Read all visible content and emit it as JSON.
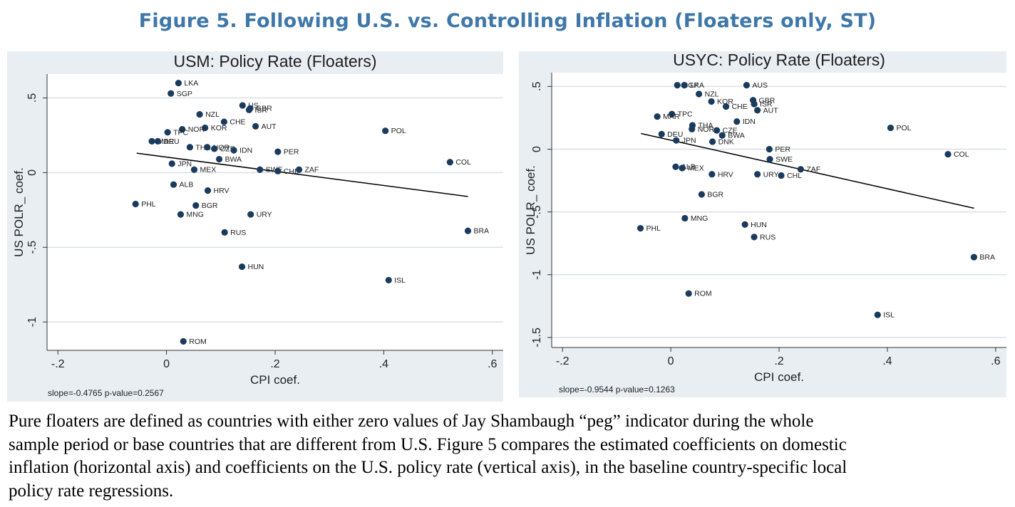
{
  "page": {
    "figure_title": "Figure 5. Following U.S. vs. Controlling Inflation (Floaters only, ST)",
    "caption_lines": [
      "Pure floaters are defined as countries with either zero values of Jay Shambaugh “peg” indicator during the whole",
      "sample period or base countries that are different from U.S. Figure 5 compares the estimated coefficients on domestic",
      "inflation (horizontal axis) and coefficients on the U.S. policy rate (vertical axis), in the baseline country-specific local",
      "policy rate regressions."
    ]
  },
  "colors": {
    "title": "#3f77a8",
    "panel_bg": "#e9eef3",
    "plot_bg": "#ffffff",
    "marker": "#1a3a5e",
    "grid": "#d9e0e6",
    "text": "#222222"
  },
  "chart_data": [
    {
      "type": "scatter",
      "title": "USM: Policy Rate (Floaters)",
      "xlabel": "CPI coef.",
      "ylabel": "US POLR_ coef.",
      "footnote": "slope=-0.4765 p-value=0.2567",
      "xlim": [
        -0.22,
        0.62
      ],
      "ylim": [
        -1.19,
        0.66
      ],
      "xticks": [
        {
          "v": -0.2,
          "label": "-.2"
        },
        {
          "v": 0,
          "label": "0"
        },
        {
          "v": 0.2,
          "label": ".2"
        },
        {
          "v": 0.4,
          "label": ".4"
        },
        {
          "v": 0.6,
          "label": ".6"
        }
      ],
      "yticks": [
        {
          "v": -1,
          "label": "-1"
        },
        {
          "v": -0.5,
          "label": "-.5"
        },
        {
          "v": 0,
          "label": "0"
        },
        {
          "v": 0.5,
          "label": ".5"
        }
      ],
      "grid": true,
      "fit_line": {
        "x": [
          -0.055,
          0.555
        ],
        "y": [
          0.13,
          -0.16
        ]
      },
      "points": [
        {
          "label": "LKA",
          "x": 0.022,
          "y": 0.6
        },
        {
          "label": "SGP",
          "x": 0.008,
          "y": 0.53
        },
        {
          "label": "US",
          "x": 0.14,
          "y": 0.45
        },
        {
          "label": "GBR",
          "x": 0.154,
          "y": 0.43
        },
        {
          "label": "ISR",
          "x": 0.152,
          "y": 0.42
        },
        {
          "label": "NZL",
          "x": 0.061,
          "y": 0.39
        },
        {
          "label": "CHE",
          "x": 0.106,
          "y": 0.34
        },
        {
          "label": "AUT",
          "x": 0.164,
          "y": 0.31
        },
        {
          "label": "KOR",
          "x": 0.071,
          "y": 0.3
        },
        {
          "label": "NOR",
          "x": 0.029,
          "y": 0.29
        },
        {
          "label": "TPC",
          "x": 0.002,
          "y": 0.27
        },
        {
          "label": "POL",
          "x": 0.403,
          "y": 0.28
        },
        {
          "label": "MAR",
          "x": -0.027,
          "y": 0.21
        },
        {
          "label": "DEU",
          "x": -0.016,
          "y": 0.21
        },
        {
          "label": "THA",
          "x": 0.043,
          "y": 0.17
        },
        {
          "label": "NOR",
          "x": 0.075,
          "y": 0.17
        },
        {
          "label": "CZE",
          "x": 0.088,
          "y": 0.16
        },
        {
          "label": "IDN",
          "x": 0.124,
          "y": 0.15
        },
        {
          "label": "PER",
          "x": 0.205,
          "y": 0.14
        },
        {
          "label": "BWA",
          "x": 0.097,
          "y": 0.09
        },
        {
          "label": "JPN",
          "x": 0.01,
          "y": 0.06
        },
        {
          "label": "COL",
          "x": 0.522,
          "y": 0.07
        },
        {
          "label": "MEX",
          "x": 0.051,
          "y": 0.02
        },
        {
          "label": "SWE",
          "x": 0.172,
          "y": 0.02
        },
        {
          "label": "CHL",
          "x": 0.205,
          "y": 0.01
        },
        {
          "label": "ZAF",
          "x": 0.244,
          "y": 0.02
        },
        {
          "label": "ALB",
          "x": 0.013,
          "y": -0.08
        },
        {
          "label": "HRV",
          "x": 0.076,
          "y": -0.12
        },
        {
          "label": "PHL",
          "x": -0.057,
          "y": -0.21
        },
        {
          "label": "BGR",
          "x": 0.054,
          "y": -0.22
        },
        {
          "label": "MNG",
          "x": 0.026,
          "y": -0.28
        },
        {
          "label": "URY",
          "x": 0.155,
          "y": -0.28
        },
        {
          "label": "RUS",
          "x": 0.107,
          "y": -0.4
        },
        {
          "label": "BRA",
          "x": 0.555,
          "y": -0.39
        },
        {
          "label": "HUN",
          "x": 0.139,
          "y": -0.63
        },
        {
          "label": "ISL",
          "x": 0.409,
          "y": -0.72
        },
        {
          "label": "ROM",
          "x": 0.031,
          "y": -1.13
        }
      ]
    },
    {
      "type": "scatter",
      "title": "USYC: Policy Rate (Floaters)",
      "xlabel": "CPI coef.",
      "ylabel": "US POLR_ coef.",
      "footnote": "slope=-0.9544 p-value=0.1263",
      "xlim": [
        -0.22,
        0.62
      ],
      "ylim": [
        -1.58,
        0.61
      ],
      "xticks": [
        {
          "v": -0.2,
          "label": "-.2"
        },
        {
          "v": 0,
          "label": "0"
        },
        {
          "v": 0.2,
          "label": ".2"
        },
        {
          "v": 0.4,
          "label": ".4"
        },
        {
          "v": 0.6,
          "label": ".6"
        }
      ],
      "yticks": [
        {
          "v": -1.5,
          "label": "-1.5"
        },
        {
          "v": -1,
          "label": "-1"
        },
        {
          "v": -0.5,
          "label": "-.5"
        },
        {
          "v": 0,
          "label": "0"
        },
        {
          "v": 0.5,
          "label": ".5"
        }
      ],
      "grid": true,
      "fit_line": {
        "x": [
          -0.055,
          0.56
        ],
        "y": [
          0.125,
          -0.47
        ]
      },
      "points": [
        {
          "label": "SGP",
          "x": 0.012,
          "y": 0.51
        },
        {
          "label": "LKA",
          "x": 0.025,
          "y": 0.51
        },
        {
          "label": "AUS",
          "x": 0.14,
          "y": 0.51
        },
        {
          "label": "NZL",
          "x": 0.052,
          "y": 0.44
        },
        {
          "label": "GBR",
          "x": 0.152,
          "y": 0.39
        },
        {
          "label": "KOR",
          "x": 0.075,
          "y": 0.38
        },
        {
          "label": "ISR",
          "x": 0.154,
          "y": 0.36
        },
        {
          "label": "CHE",
          "x": 0.102,
          "y": 0.34
        },
        {
          "label": "AUT",
          "x": 0.16,
          "y": 0.31
        },
        {
          "label": "TPC",
          "x": 0.002,
          "y": 0.28
        },
        {
          "label": "MAR",
          "x": -0.025,
          "y": 0.26
        },
        {
          "label": "IDN",
          "x": 0.122,
          "y": 0.22
        },
        {
          "label": "THA",
          "x": 0.04,
          "y": 0.19
        },
        {
          "label": "NOR",
          "x": 0.039,
          "y": 0.16
        },
        {
          "label": "CZE",
          "x": 0.085,
          "y": 0.15
        },
        {
          "label": "POL",
          "x": 0.406,
          "y": 0.17
        },
        {
          "label": "DEU",
          "x": -0.017,
          "y": 0.12
        },
        {
          "label": "BWA",
          "x": 0.095,
          "y": 0.11
        },
        {
          "label": "JPN",
          "x": 0.01,
          "y": 0.07
        },
        {
          "label": "DNK",
          "x": 0.077,
          "y": 0.06
        },
        {
          "label": "PER",
          "x": 0.182,
          "y": 0.0
        },
        {
          "label": "COL",
          "x": 0.512,
          "y": -0.04
        },
        {
          "label": "SWE",
          "x": 0.183,
          "y": -0.08
        },
        {
          "label": "ALB",
          "x": 0.009,
          "y": -0.14
        },
        {
          "label": "MEX",
          "x": 0.021,
          "y": -0.15
        },
        {
          "label": "ZAF",
          "x": 0.24,
          "y": -0.16
        },
        {
          "label": "HRV",
          "x": 0.076,
          "y": -0.2
        },
        {
          "label": "URY",
          "x": 0.16,
          "y": -0.2
        },
        {
          "label": "CHL",
          "x": 0.204,
          "y": -0.21
        },
        {
          "label": "BGR",
          "x": 0.057,
          "y": -0.36
        },
        {
          "label": "MNG",
          "x": 0.026,
          "y": -0.55
        },
        {
          "label": "HUN",
          "x": 0.137,
          "y": -0.6
        },
        {
          "label": "PHL",
          "x": -0.056,
          "y": -0.63
        },
        {
          "label": "RUS",
          "x": 0.154,
          "y": -0.7
        },
        {
          "label": "BRA",
          "x": 0.56,
          "y": -0.86
        },
        {
          "label": "ROM",
          "x": 0.033,
          "y": -1.15
        },
        {
          "label": "ISL",
          "x": 0.382,
          "y": -1.32
        }
      ]
    }
  ]
}
